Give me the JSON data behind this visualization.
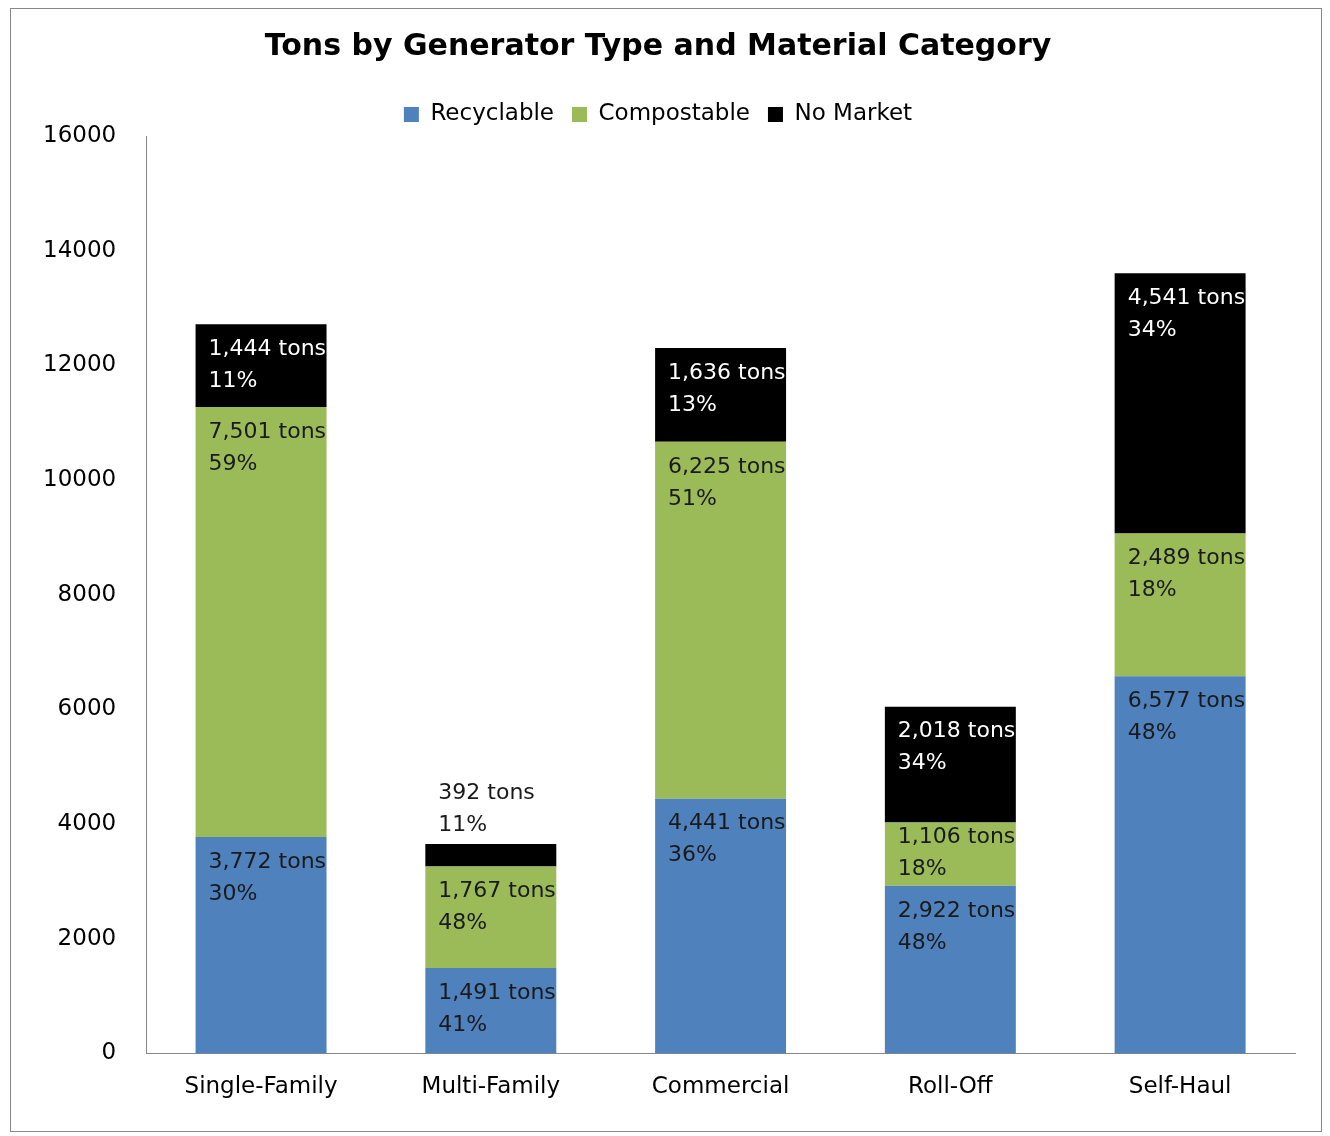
{
  "chart_data": {
    "type": "bar",
    "title": "Tons by Generator Type and Material Category",
    "categories": [
      "Single-Family",
      "Multi-Family",
      "Commercial",
      "Roll-Off",
      "Self-Haul"
    ],
    "stacked": true,
    "ylim": [
      0,
      16000
    ],
    "yticks": [
      0,
      2000,
      4000,
      6000,
      8000,
      10000,
      12000,
      14000,
      16000
    ],
    "grid": false,
    "legend": "top",
    "series": [
      {
        "name": "Recyclable",
        "color": "#4f81bd",
        "values": [
          3772,
          1491,
          4441,
          2922,
          6577
        ],
        "value_labels": [
          "3,772 tons\n30%",
          "1,491 tons\n41%",
          "4,441 tons\n36%",
          "2,922 tons\n48%",
          "6,577 tons\n48%"
        ]
      },
      {
        "name": "Compostable",
        "color": "#9bbb59",
        "values": [
          7501,
          1767,
          6225,
          1106,
          2489
        ],
        "value_labels": [
          "7,501 tons\n59%",
          "1,767 tons\n48%",
          "6,225 tons\n51%",
          "1,106 tons\n18%",
          "2,489 tons\n18%"
        ]
      },
      {
        "name": "No Market",
        "color": "#000000",
        "values": [
          1444,
          392,
          1636,
          2018,
          4541
        ],
        "value_labels": [
          "1,444 tons\n11%",
          "392 tons\n11%",
          "1,636 tons\n13%",
          "2,018 tons\n34%",
          "4,541 tons\n34%"
        ]
      }
    ]
  }
}
